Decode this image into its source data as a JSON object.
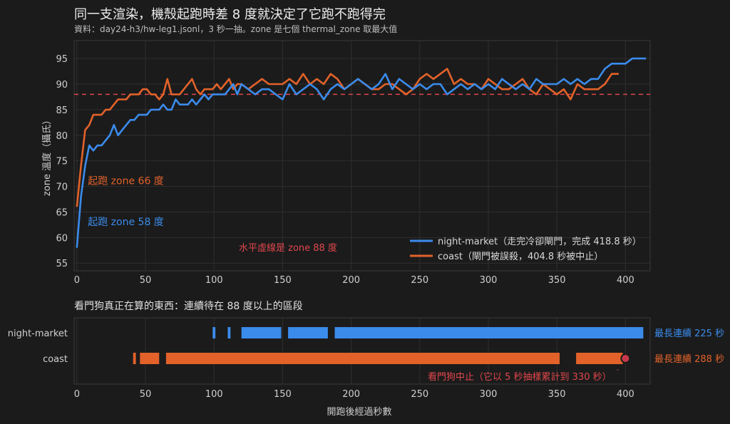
{
  "title": "同一支渲染，機殼起跑時差 8 度就決定了它跑不跑得完",
  "subtitle": "資料：day24-h3/hw-leg1.jsonl，3 秒一抽。zone 是七個 thermal_zone 取最大值",
  "colors": {
    "background": "#1b1b1b",
    "night_market": "#3b8beb",
    "coast": "#e2622a",
    "threshold": "#e0474c",
    "text": "#d8d8d8",
    "grid": "#2f2f2f"
  },
  "chart_data": [
    {
      "type": "line",
      "title": "",
      "xlabel": "",
      "ylabel": "zone 溫度（攝氏）",
      "xlim": [
        -2,
        418
      ],
      "ylim": [
        53.5,
        98.5
      ],
      "xticks": [
        0,
        50,
        100,
        150,
        200,
        250,
        300,
        350,
        400
      ],
      "yticks": [
        55,
        60,
        65,
        70,
        75,
        80,
        85,
        90,
        95
      ],
      "grid": true,
      "legend_position": "lower-right",
      "threshold": {
        "y": 88,
        "label": "水平虛線是 zone 88 度"
      },
      "annotations": [
        {
          "text": "起跑 zone 66 度",
          "series": "coast",
          "x": 8,
          "y": 71
        },
        {
          "text": "起跑 zone 58 度",
          "series": "night-market",
          "x": 8,
          "y": 63
        }
      ],
      "series": [
        {
          "name": "night-market",
          "legend_label": "night-market（走完冷卻閘門，完成 418.8 秒）",
          "color": "#3b8beb",
          "x": [
            0,
            3,
            6,
            9,
            12,
            15,
            18,
            21,
            24,
            27,
            30,
            33,
            36,
            39,
            42,
            45,
            48,
            51,
            54,
            57,
            60,
            63,
            66,
            69,
            72,
            75,
            78,
            81,
            84,
            87,
            90,
            93,
            96,
            99,
            102,
            105,
            108,
            111,
            114,
            117,
            120,
            125,
            130,
            135,
            140,
            145,
            150,
            155,
            160,
            165,
            170,
            175,
            180,
            185,
            190,
            195,
            200,
            205,
            210,
            215,
            220,
            225,
            230,
            235,
            240,
            245,
            250,
            255,
            260,
            265,
            270,
            275,
            280,
            285,
            290,
            295,
            300,
            305,
            310,
            315,
            320,
            325,
            330,
            335,
            340,
            345,
            350,
            355,
            360,
            365,
            370,
            375,
            380,
            385,
            390,
            395,
            400,
            405,
            410,
            415
          ],
          "y": [
            58,
            68,
            74,
            78,
            77,
            78,
            78,
            79,
            80,
            82,
            80,
            81,
            82,
            83,
            83,
            84,
            84,
            84,
            85,
            85,
            85,
            86,
            85,
            85,
            87,
            86,
            86,
            86,
            87,
            86,
            87,
            88,
            87,
            88,
            88,
            88,
            88,
            89,
            90,
            88,
            90,
            89,
            88,
            89,
            89,
            88,
            87,
            90,
            88,
            89,
            90,
            89,
            87,
            89,
            90,
            89,
            90,
            91,
            90,
            89,
            90,
            92,
            89,
            91,
            90,
            89,
            90,
            89,
            90,
            90,
            88,
            89,
            90,
            89,
            90,
            89,
            90,
            89,
            91,
            90,
            89,
            90,
            89,
            91,
            90,
            90,
            90,
            91,
            90,
            91,
            90,
            91,
            91,
            93,
            94,
            94,
            94,
            95,
            95,
            95
          ]
        },
        {
          "name": "coast",
          "legend_label": "coast（閘門被誤殺，404.8 秒被中止）",
          "color": "#e2622a",
          "x": [
            0,
            3,
            6,
            9,
            12,
            15,
            18,
            21,
            24,
            27,
            30,
            33,
            36,
            39,
            42,
            45,
            48,
            51,
            54,
            57,
            60,
            63,
            66,
            69,
            72,
            75,
            78,
            81,
            84,
            87,
            90,
            93,
            96,
            99,
            102,
            105,
            108,
            111,
            114,
            117,
            120,
            125,
            130,
            135,
            140,
            145,
            150,
            155,
            160,
            165,
            170,
            175,
            180,
            185,
            190,
            195,
            200,
            205,
            210,
            215,
            220,
            225,
            230,
            235,
            240,
            245,
            250,
            255,
            260,
            265,
            270,
            275,
            280,
            285,
            290,
            295,
            300,
            305,
            310,
            315,
            320,
            325,
            330,
            335,
            340,
            345,
            350,
            355,
            360,
            365,
            370,
            375,
            380,
            385,
            390,
            395
          ],
          "y": [
            66,
            74,
            81,
            82,
            84,
            84,
            84,
            85,
            85,
            86,
            87,
            87,
            87,
            88,
            88,
            88,
            89,
            89,
            88,
            88,
            87,
            88,
            91,
            88,
            88,
            88,
            89,
            90,
            91,
            89,
            88,
            89,
            89,
            89,
            90,
            89,
            90,
            91,
            89,
            90,
            90,
            89,
            90,
            91,
            90,
            90,
            90,
            91,
            90,
            92,
            90,
            91,
            90,
            92,
            91,
            89,
            90,
            91,
            90,
            89,
            89,
            90,
            90,
            89,
            88,
            89,
            91,
            92,
            91,
            92,
            93,
            90,
            91,
            90,
            90,
            89,
            91,
            90,
            89,
            89,
            90,
            91,
            89,
            88,
            90,
            89,
            88,
            89,
            87,
            90,
            89,
            89,
            89,
            90,
            92,
            92
          ]
        }
      ]
    },
    {
      "type": "timeline",
      "title": "看門狗真正在算的東西：連續待在 88 度以上的區段",
      "xlabel": "開跑後經過秒數",
      "xlim": [
        -2,
        418
      ],
      "xticks": [
        0,
        50,
        100,
        150,
        200,
        250,
        300,
        350,
        400
      ],
      "categories": [
        "night-market",
        "coast"
      ],
      "series": [
        {
          "name": "night-market",
          "color": "#3b8beb",
          "segments": [
            [
              99,
              101
            ],
            [
              110,
              112
            ],
            [
              120,
              149
            ],
            [
              154,
              183
            ],
            [
              188,
              413
            ]
          ],
          "longest_label": "最長連續 225 秒"
        },
        {
          "name": "coast",
          "color": "#e2622a",
          "segments": [
            [
              41,
              43
            ],
            [
              46,
              60
            ],
            [
              65,
              352
            ],
            [
              364,
              398
            ]
          ],
          "longest_label": "最長連續 288 秒",
          "stop_marker": {
            "x": 400,
            "label": "看門狗中止（它以 5 秒抽樣累計到 330 秒）"
          }
        }
      ]
    }
  ]
}
